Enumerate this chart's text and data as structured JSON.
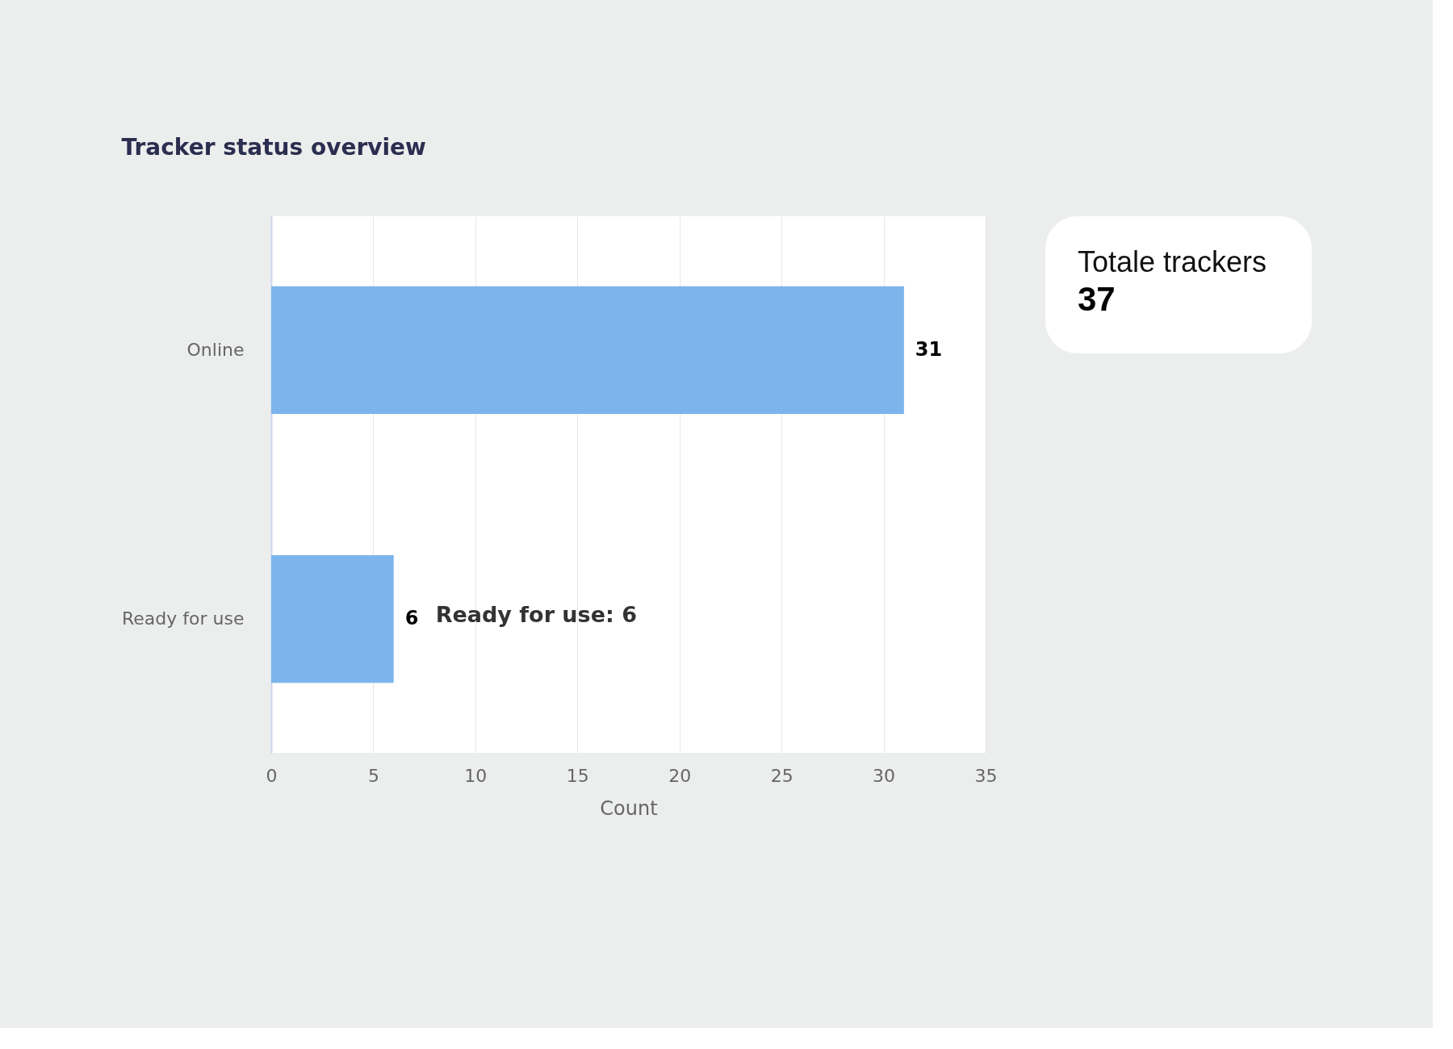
{
  "chart_data": [
    {
      "type": "bar",
      "orientation": "horizontal",
      "title": "Tracker status overview",
      "xlabel": "Count",
      "categories": [
        "Online",
        "Ready for use"
      ],
      "values": [
        31,
        6
      ],
      "color": "#7cb5ec",
      "xlim": [
        0,
        35
      ],
      "xticks": [
        0,
        5,
        10,
        15,
        20,
        25,
        30,
        35
      ],
      "grid": "x",
      "data_labels": true,
      "annotations": [
        {
          "text": "Ready for use: 6",
          "x": 6,
          "y": "Ready for use"
        }
      ]
    },
    {
      "type": "other",
      "title": "Totale trackers",
      "annotations": [
        "37"
      ]
    }
  ]
}
